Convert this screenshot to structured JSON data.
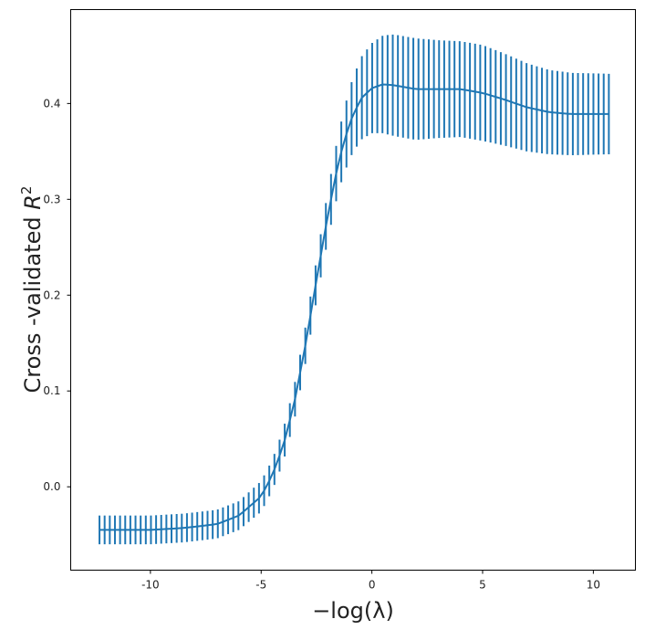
{
  "chart_data": {
    "type": "line",
    "title": "",
    "xlabel": "−log(λ)",
    "ylabel_text": "Cross -validated ",
    "ylabel_symbol": "R",
    "ylabel_superscript": "2",
    "xlim": [
      -13.6,
      11.9
    ],
    "ylim": [
      -0.087,
      0.498
    ],
    "x_ticks": [
      -10,
      -5,
      0,
      5,
      10
    ],
    "x_tick_labels": [
      "-10",
      "-5",
      "0",
      "5",
      "10"
    ],
    "y_ticks": [
      0.0,
      0.1,
      0.2,
      0.3,
      0.4
    ],
    "y_tick_labels": [
      "0.0",
      "0.1",
      "0.2",
      "0.3",
      "0.4"
    ],
    "grid": false,
    "series": [
      {
        "color": "#1f77b4",
        "x_range": [
          -12.3,
          10.7
        ],
        "n_points": 100,
        "error_bars": true,
        "curve_points": [
          {
            "x": -12.3,
            "y": -0.045,
            "err": 0.015
          },
          {
            "x": -10.0,
            "y": -0.045,
            "err": 0.015
          },
          {
            "x": -8.5,
            "y": -0.043,
            "err": 0.015
          },
          {
            "x": -7.0,
            "y": -0.039,
            "err": 0.015
          },
          {
            "x": -6.0,
            "y": -0.03,
            "err": 0.015
          },
          {
            "x": -5.0,
            "y": -0.01,
            "err": 0.016
          },
          {
            "x": -4.5,
            "y": 0.012,
            "err": 0.016
          },
          {
            "x": -4.0,
            "y": 0.043,
            "err": 0.017
          },
          {
            "x": -3.5,
            "y": 0.088,
            "err": 0.018
          },
          {
            "x": -3.0,
            "y": 0.148,
            "err": 0.019
          },
          {
            "x": -2.5,
            "y": 0.216,
            "err": 0.021
          },
          {
            "x": -2.0,
            "y": 0.282,
            "err": 0.025
          },
          {
            "x": -1.5,
            "y": 0.34,
            "err": 0.03
          },
          {
            "x": -1.0,
            "y": 0.38,
            "err": 0.037
          },
          {
            "x": -0.5,
            "y": 0.405,
            "err": 0.043
          },
          {
            "x": 0.0,
            "y": 0.416,
            "err": 0.047
          },
          {
            "x": 0.5,
            "y": 0.42,
            "err": 0.051
          },
          {
            "x": 1.0,
            "y": 0.419,
            "err": 0.053
          },
          {
            "x": 2.0,
            "y": 0.415,
            "err": 0.053
          },
          {
            "x": 3.0,
            "y": 0.415,
            "err": 0.051
          },
          {
            "x": 4.0,
            "y": 0.415,
            "err": 0.05
          },
          {
            "x": 5.0,
            "y": 0.411,
            "err": 0.05
          },
          {
            "x": 6.0,
            "y": 0.404,
            "err": 0.048
          },
          {
            "x": 7.0,
            "y": 0.396,
            "err": 0.046
          },
          {
            "x": 8.0,
            "y": 0.391,
            "err": 0.044
          },
          {
            "x": 9.0,
            "y": 0.389,
            "err": 0.043
          },
          {
            "x": 10.7,
            "y": 0.389,
            "err": 0.042
          }
        ]
      }
    ]
  }
}
